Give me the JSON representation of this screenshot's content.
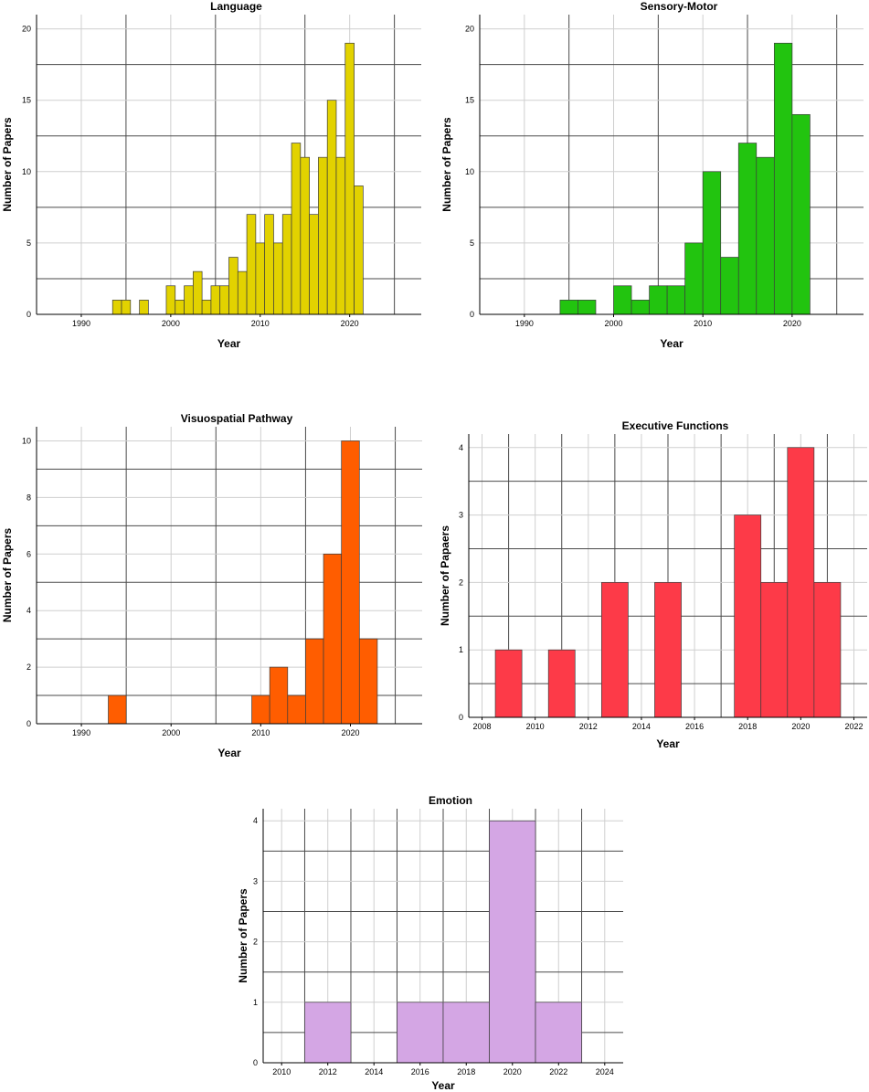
{
  "chart_data": [
    {
      "type": "bar",
      "title": "Language",
      "xlabel": "Year",
      "ylabel": "Number of Papers",
      "color": "#e2d200",
      "xlim": [
        1985,
        2028
      ],
      "ylim": [
        0,
        21
      ],
      "xticks": [
        1990,
        2000,
        2010,
        2020
      ],
      "yticks": [
        0,
        5,
        10,
        15,
        20
      ],
      "bin_width": 1,
      "x": [
        1994,
        1995,
        1997,
        2000,
        2001,
        2002,
        2003,
        2004,
        2005,
        2006,
        2007,
        2008,
        2009,
        2010,
        2011,
        2012,
        2013,
        2014,
        2015,
        2016,
        2017,
        2018,
        2019,
        2020,
        2021
      ],
      "values": [
        1,
        1,
        1,
        2,
        1,
        2,
        3,
        1,
        2,
        2,
        4,
        3,
        7,
        5,
        7,
        5,
        7,
        12,
        11,
        7,
        11,
        15,
        11,
        19,
        9
      ]
    },
    {
      "type": "bar",
      "title": "Sensory-Motor",
      "xlabel": "Year",
      "ylabel": "Number of Papers",
      "color": "#22c40f",
      "xlim": [
        1985,
        2028
      ],
      "ylim": [
        0,
        21
      ],
      "xticks": [
        1990,
        2000,
        2010,
        2020
      ],
      "yticks": [
        0,
        5,
        10,
        15,
        20
      ],
      "bin_width": 2,
      "x": [
        1995,
        1997,
        2001,
        2003,
        2005,
        2007,
        2009,
        2011,
        2013,
        2015,
        2017,
        2019,
        2021
      ],
      "values": [
        1,
        1,
        2,
        1,
        2,
        2,
        5,
        10,
        4,
        12,
        11,
        19,
        14
      ]
    },
    {
      "type": "bar",
      "title": "Visuospatial Pathway",
      "xlabel": "Year",
      "ylabel": "Number of Papers",
      "color": "#ff5d00",
      "xlim": [
        1985,
        2028
      ],
      "ylim": [
        0,
        10.5
      ],
      "xticks": [
        1990,
        2000,
        2010,
        2020
      ],
      "yticks": [
        0,
        2,
        4,
        6,
        8,
        10
      ],
      "bin_width": 2,
      "x": [
        1994,
        2010,
        2012,
        2014,
        2016,
        2018,
        2020,
        2022
      ],
      "values": [
        1,
        1,
        2,
        1,
        3,
        6,
        10,
        3
      ]
    },
    {
      "type": "bar",
      "title": "Executive Functions",
      "xlabel": "Year",
      "ylabel": "Number of Papaers",
      "color": "#fd3a48",
      "xlim": [
        2007.5,
        2022.5
      ],
      "ylim": [
        0,
        4.2
      ],
      "xticks": [
        2008,
        2010,
        2012,
        2014,
        2016,
        2018,
        2020,
        2022
      ],
      "yticks": [
        0,
        1,
        2,
        3,
        4
      ],
      "bin_width": 1,
      "x": [
        2009,
        2011,
        2013,
        2015,
        2018,
        2019,
        2020,
        2021
      ],
      "values": [
        1,
        1,
        2,
        2,
        3,
        2,
        4,
        2
      ]
    },
    {
      "type": "bar",
      "title": "Emotion",
      "xlabel": "Year",
      "ylabel": "Number of Papers",
      "color": "#d4a6e4",
      "xlim": [
        2009.2,
        2024.8
      ],
      "ylim": [
        0,
        4.2
      ],
      "xticks": [
        2010,
        2012,
        2014,
        2016,
        2018,
        2020,
        2022,
        2024
      ],
      "yticks": [
        0,
        1,
        2,
        3,
        4
      ],
      "bin_width": 2,
      "x": [
        2012,
        2016,
        2018,
        2020,
        2022
      ],
      "values": [
        1,
        1,
        1,
        4,
        1
      ]
    }
  ]
}
